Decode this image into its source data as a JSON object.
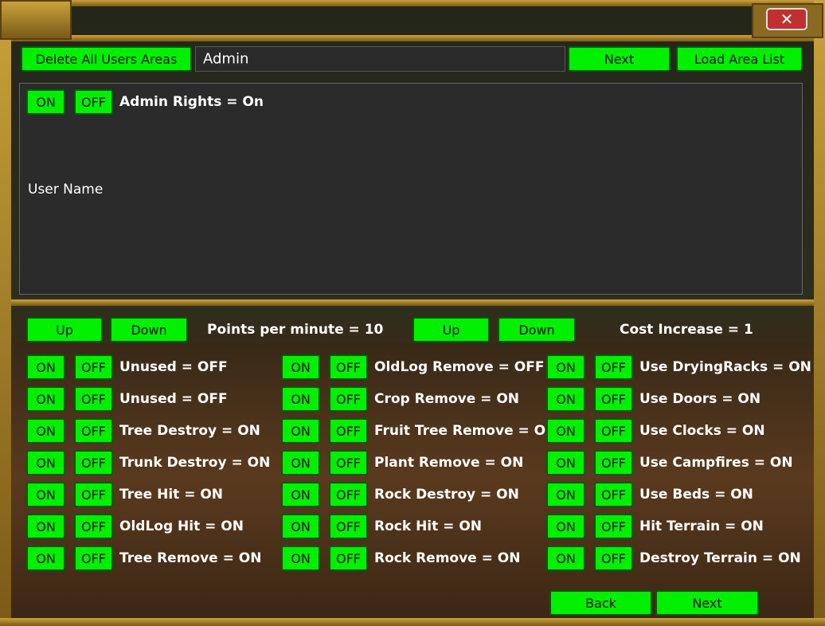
{
  "top_bar": {
    "delete_button": "Delete All Users Areas",
    "user_field": "Admin",
    "next_button": "Next",
    "load_button": "Load Area List"
  },
  "user_panel": {
    "on": "ON",
    "off": "OFF",
    "admin_rights": "Admin Rights = On",
    "user_name": "User Name"
  },
  "points_row": {
    "up": "Up",
    "down": "Down",
    "points": "Points per minute = 10"
  },
  "cost_row": {
    "up": "Up",
    "down": "Down",
    "cost": "Cost Increase = 1"
  },
  "settings": [
    [
      {
        "on": "ON",
        "off": "OFF",
        "label": "Unused = OFF"
      },
      {
        "on": "ON",
        "off": "OFF",
        "label": "Unused = OFF"
      },
      {
        "on": "ON",
        "off": "OFF",
        "label": "Tree Destroy = ON"
      },
      {
        "on": "ON",
        "off": "OFF",
        "label": "Trunk Destroy = ON"
      },
      {
        "on": "ON",
        "off": "OFF",
        "label": "Tree Hit = ON"
      },
      {
        "on": "ON",
        "off": "OFF",
        "label": "OldLog Hit = ON"
      },
      {
        "on": "ON",
        "off": "OFF",
        "label": "Tree Remove = ON"
      }
    ],
    [
      {
        "on": "ON",
        "off": "OFF",
        "label": "OldLog Remove = OFF"
      },
      {
        "on": "ON",
        "off": "OFF",
        "label": "Crop Remove = ON"
      },
      {
        "on": "ON",
        "off": "OFF",
        "label": "Fruit Tree Remove = ON"
      },
      {
        "on": "ON",
        "off": "OFF",
        "label": "Plant Remove = ON"
      },
      {
        "on": "ON",
        "off": "OFF",
        "label": "Rock Destroy = ON"
      },
      {
        "on": "ON",
        "off": "OFF",
        "label": "Rock Hit = ON"
      },
      {
        "on": "ON",
        "off": "OFF",
        "label": "Rock Remove = ON"
      }
    ],
    [
      {
        "on": "ON",
        "off": "OFF",
        "label": "Use DryingRacks = ON"
      },
      {
        "on": "ON",
        "off": "OFF",
        "label": "Use Doors = ON"
      },
      {
        "on": "ON",
        "off": "OFF",
        "label": "Use Clocks = ON"
      },
      {
        "on": "ON",
        "off": "OFF",
        "label": "Use Campfires = ON"
      },
      {
        "on": "ON",
        "off": "OFF",
        "label": "Use Beds = ON"
      },
      {
        "on": "ON",
        "off": "OFF",
        "label": "Hit Terrain = ON"
      },
      {
        "on": "ON",
        "off": "OFF",
        "label": "Destroy Terrain = ON"
      }
    ]
  ],
  "bottom_bar": {
    "back": "Back",
    "next": "Next"
  }
}
